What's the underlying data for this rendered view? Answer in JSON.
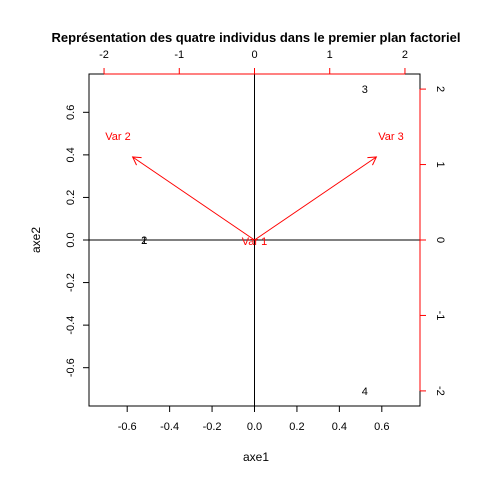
{
  "chart_data": {
    "type": "scatter",
    "title": "Représentation des quatre individus dans le premier plan factoriel",
    "xlabel": "axe1",
    "ylabel": "axe2",
    "xlim": [
      -0.78,
      0.78
    ],
    "ylim": [
      -0.78,
      0.78
    ],
    "xticks": [
      "-0.6",
      "-0.4",
      "-0.2",
      "0.0",
      "0.2",
      "0.4",
      "0.6"
    ],
    "yticks": [
      "-0.6",
      "-0.4",
      "-0.2",
      "0.0",
      "0.2",
      "0.4",
      "0.6"
    ],
    "top_axis": {
      "range": [
        -2.2,
        2.2
      ],
      "ticks": [
        "-2",
        "-1",
        "0",
        "1",
        "2"
      ]
    },
    "right_axis": {
      "range": [
        -2.2,
        2.2
      ],
      "ticks": [
        "-2",
        "-1",
        "0",
        "1",
        "2"
      ]
    },
    "points": [
      {
        "label": "1",
        "x": -0.52,
        "y": 0.0
      },
      {
        "label": "2",
        "x": -0.52,
        "y": 0.0
      },
      {
        "label": "3",
        "x": 0.52,
        "y": 0.71
      },
      {
        "label": "4",
        "x": 0.52,
        "y": -0.71
      }
    ],
    "variables": [
      {
        "label": "Var 1",
        "x": 0.0,
        "y": 0.0
      },
      {
        "label": "Var 2",
        "x": -1.62,
        "y": 1.1
      },
      {
        "label": "Var 3",
        "x": 1.62,
        "y": 1.1
      }
    ],
    "colors": {
      "observations": "#000000",
      "variables": "#ff0000"
    },
    "reference_lines": [
      {
        "axis": "x",
        "value": 0
      },
      {
        "axis": "y",
        "value": 0
      }
    ]
  }
}
